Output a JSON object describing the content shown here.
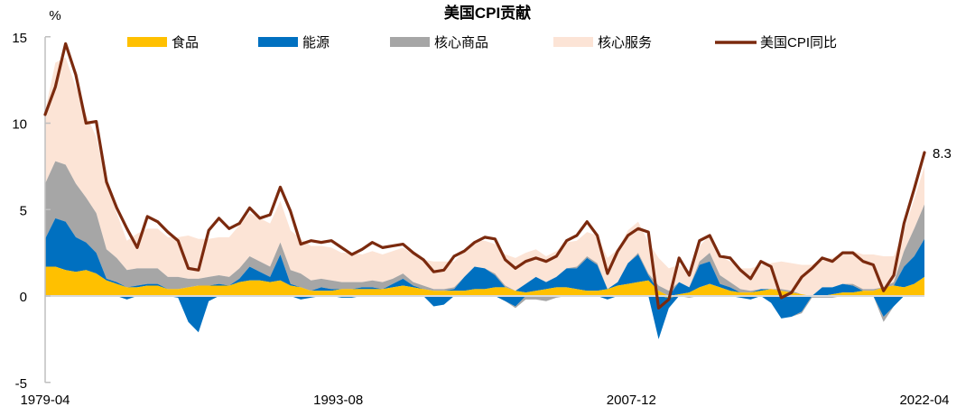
{
  "chart_data": {
    "type": "area",
    "title": "美国CPI贡献",
    "ylabel": "%",
    "xlabel": "",
    "ylim": [
      -5,
      15
    ],
    "yticks": [
      -5,
      0,
      5,
      10,
      15
    ],
    "xtick_labels": [
      "1979-04",
      "1993-08",
      "2007-12",
      "2022-04"
    ],
    "x_range": [
      "1979-04",
      "2022-04"
    ],
    "grid": false,
    "legend_position": "top",
    "legend": [
      "食品",
      "能源",
      "核心商品",
      "核心服务",
      "美国CPI同比"
    ],
    "colors": {
      "食品": "#FFC000",
      "能源": "#0070C0",
      "核心商品": "#A6A6A6",
      "核心服务": "#FCE4D6",
      "美国CPI同比": "#7B2A0E"
    },
    "annotation": {
      "text": "8.3",
      "x": "2022-04",
      "y": 8.3
    },
    "x": [
      "1979-04",
      "1979-10",
      "1980-04",
      "1980-10",
      "1981-04",
      "1981-10",
      "1982-04",
      "1982-10",
      "1983-04",
      "1983-10",
      "1984-04",
      "1984-10",
      "1985-04",
      "1985-10",
      "1986-04",
      "1986-10",
      "1987-04",
      "1987-10",
      "1988-04",
      "1988-10",
      "1989-04",
      "1989-10",
      "1990-04",
      "1990-10",
      "1991-04",
      "1991-10",
      "1992-04",
      "1992-10",
      "1993-04",
      "1993-10",
      "1994-04",
      "1994-10",
      "1995-04",
      "1995-10",
      "1996-04",
      "1996-10",
      "1997-04",
      "1997-10",
      "1998-04",
      "1998-10",
      "1999-04",
      "1999-10",
      "2000-04",
      "2000-10",
      "2001-04",
      "2001-10",
      "2002-04",
      "2002-10",
      "2003-04",
      "2003-10",
      "2004-04",
      "2004-10",
      "2005-04",
      "2005-10",
      "2006-04",
      "2006-10",
      "2007-04",
      "2007-10",
      "2008-04",
      "2008-10",
      "2009-04",
      "2009-10",
      "2010-04",
      "2010-10",
      "2011-04",
      "2011-10",
      "2012-04",
      "2012-10",
      "2013-04",
      "2013-10",
      "2014-04",
      "2014-10",
      "2015-04",
      "2015-10",
      "2016-04",
      "2016-10",
      "2017-04",
      "2017-10",
      "2018-04",
      "2018-10",
      "2019-04",
      "2019-10",
      "2020-04",
      "2020-10",
      "2021-04",
      "2021-10",
      "2022-04"
    ],
    "series": [
      {
        "name": "食品",
        "values": [
          1.7,
          1.7,
          1.5,
          1.4,
          1.5,
          1.3,
          0.9,
          0.7,
          0.5,
          0.5,
          0.6,
          0.6,
          0.4,
          0.4,
          0.5,
          0.6,
          0.6,
          0.6,
          0.6,
          0.8,
          0.9,
          0.9,
          0.8,
          0.9,
          0.6,
          0.5,
          0.3,
          0.3,
          0.3,
          0.4,
          0.4,
          0.4,
          0.4,
          0.4,
          0.5,
          0.6,
          0.5,
          0.4,
          0.3,
          0.3,
          0.3,
          0.3,
          0.4,
          0.4,
          0.5,
          0.5,
          0.3,
          0.2,
          0.3,
          0.4,
          0.5,
          0.5,
          0.4,
          0.3,
          0.3,
          0.4,
          0.6,
          0.7,
          0.8,
          0.9,
          0.3,
          -0.1,
          0.1,
          0.2,
          0.5,
          0.7,
          0.5,
          0.3,
          0.2,
          0.2,
          0.3,
          0.4,
          0.3,
          0.2,
          0.1,
          0.0,
          0.0,
          0.1,
          0.2,
          0.2,
          0.3,
          0.3,
          0.5,
          0.6,
          0.5,
          0.7,
          1.1
        ]
      },
      {
        "name": "能源",
        "values": [
          1.6,
          2.8,
          2.8,
          2.0,
          1.6,
          1.2,
          0.1,
          0.1,
          -0.2,
          0.1,
          0.1,
          0.1,
          0.0,
          -0.1,
          -1.5,
          -2.1,
          -0.3,
          0.1,
          0.0,
          0.2,
          0.8,
          0.5,
          0.3,
          1.5,
          0.1,
          -0.2,
          -0.1,
          0.2,
          0.1,
          -0.1,
          -0.1,
          0.1,
          0.1,
          0.0,
          0.2,
          0.4,
          0.1,
          0.0,
          -0.6,
          -0.5,
          0.1,
          0.8,
          1.3,
          1.2,
          0.7,
          -0.3,
          -0.6,
          0.5,
          0.8,
          0.4,
          0.6,
          1.1,
          1.2,
          1.9,
          1.5,
          -0.2,
          0.2,
          1.2,
          1.6,
          0.3,
          -2.5,
          -0.6,
          0.7,
          0.3,
          1.3,
          1.3,
          0.2,
          0.2,
          -0.1,
          -0.2,
          0.1,
          -0.4,
          -1.3,
          -1.2,
          -0.9,
          0.0,
          0.5,
          0.4,
          0.5,
          0.4,
          0.0,
          0.0,
          -1.2,
          -0.6,
          1.2,
          1.6,
          2.2
        ]
      },
      {
        "name": "核心商品",
        "values": [
          3.2,
          3.3,
          3.3,
          3.1,
          2.6,
          2.3,
          1.7,
          1.4,
          1.0,
          1.0,
          0.9,
          0.9,
          0.7,
          0.7,
          0.5,
          0.4,
          0.5,
          0.5,
          0.5,
          0.6,
          0.6,
          0.6,
          0.6,
          0.7,
          0.8,
          0.8,
          0.6,
          0.5,
          0.5,
          0.4,
          0.4,
          0.3,
          0.4,
          0.4,
          0.3,
          0.3,
          0.2,
          0.2,
          0.1,
          0.1,
          0.1,
          0.0,
          0.0,
          0.0,
          0.1,
          0.1,
          -0.1,
          -0.2,
          -0.2,
          -0.3,
          -0.1,
          0.0,
          0.1,
          0.1,
          0.1,
          0.0,
          0.0,
          0.0,
          0.1,
          0.1,
          0.3,
          0.3,
          0.0,
          -0.1,
          0.2,
          0.5,
          0.5,
          0.3,
          0.2,
          0.1,
          0.0,
          0.0,
          0.1,
          0.1,
          -0.1,
          -0.1,
          -0.1,
          -0.1,
          0.0,
          0.1,
          0.1,
          0.1,
          -0.3,
          0.2,
          0.9,
          1.6,
          2.0
        ]
      },
      {
        "name": "核心服务",
        "values": [
          4.2,
          5.7,
          6.2,
          5.6,
          4.8,
          4.4,
          3.8,
          2.6,
          1.7,
          2.0,
          2.3,
          2.3,
          2.3,
          2.3,
          2.5,
          2.3,
          2.2,
          2.2,
          2.3,
          2.5,
          2.5,
          2.5,
          2.5,
          2.4,
          2.3,
          2.0,
          2.0,
          1.9,
          1.9,
          1.7,
          1.7,
          1.6,
          1.7,
          1.6,
          1.6,
          1.5,
          1.6,
          1.5,
          1.6,
          1.6,
          1.5,
          1.5,
          1.5,
          1.6,
          1.7,
          1.8,
          1.9,
          1.8,
          1.6,
          1.5,
          1.5,
          1.5,
          1.5,
          1.4,
          1.6,
          1.8,
          1.9,
          1.9,
          1.8,
          1.8,
          1.6,
          1.3,
          1.0,
          0.9,
          0.9,
          1.0,
          1.1,
          1.2,
          1.2,
          1.3,
          1.4,
          1.5,
          1.6,
          1.6,
          1.7,
          1.8,
          1.7,
          1.7,
          1.8,
          1.9,
          2.0,
          2.0,
          1.8,
          1.5,
          1.2,
          1.7,
          2.2
        ]
      },
      {
        "name": "美国CPI同比",
        "values": [
          10.5,
          12.1,
          14.6,
          12.8,
          10.0,
          10.1,
          6.6,
          5.1,
          3.9,
          2.8,
          4.6,
          4.3,
          3.7,
          3.2,
          1.6,
          1.5,
          3.8,
          4.5,
          3.9,
          4.2,
          5.1,
          4.5,
          4.7,
          6.3,
          4.9,
          3.0,
          3.2,
          3.1,
          3.2,
          2.8,
          2.4,
          2.7,
          3.1,
          2.8,
          2.9,
          3.0,
          2.5,
          2.1,
          1.4,
          1.5,
          2.3,
          2.6,
          3.1,
          3.4,
          3.3,
          2.1,
          1.6,
          2.0,
          2.2,
          2.0,
          2.3,
          3.2,
          3.5,
          4.3,
          3.5,
          1.3,
          2.6,
          3.5,
          3.9,
          3.7,
          -0.7,
          -0.2,
          2.2,
          1.2,
          3.2,
          3.5,
          2.3,
          2.2,
          1.5,
          1.0,
          2.0,
          1.7,
          -0.1,
          0.2,
          1.1,
          1.6,
          2.2,
          2.0,
          2.5,
          2.5,
          2.0,
          1.8,
          0.3,
          1.2,
          4.2,
          6.2,
          8.3
        ]
      }
    ]
  }
}
